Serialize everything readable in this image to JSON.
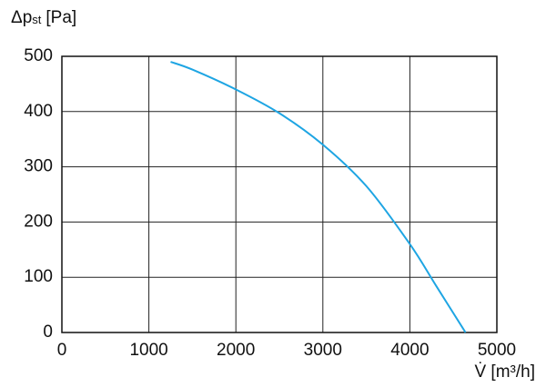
{
  "chart_data": {
    "type": "line",
    "y_label": {
      "symbol": "Δp",
      "subscript": "st",
      "unit": "[Pa]"
    },
    "x_label": "V̇ [m³/h]",
    "x": [
      1250,
      1500,
      2000,
      2500,
      3000,
      3500,
      4000,
      4300,
      4640
    ],
    "series": [
      {
        "color": "#1ea5e3",
        "values": [
          490,
          476,
          440,
          397,
          340,
          265,
          160,
          85,
          0
        ]
      }
    ],
    "xlim": [
      0,
      5000
    ],
    "xticks": [
      0,
      1000,
      2000,
      3000,
      4000,
      5000
    ],
    "ylim": [
      0,
      500
    ],
    "yticks": [
      0,
      100,
      200,
      300,
      400,
      500
    ],
    "grid": true
  }
}
